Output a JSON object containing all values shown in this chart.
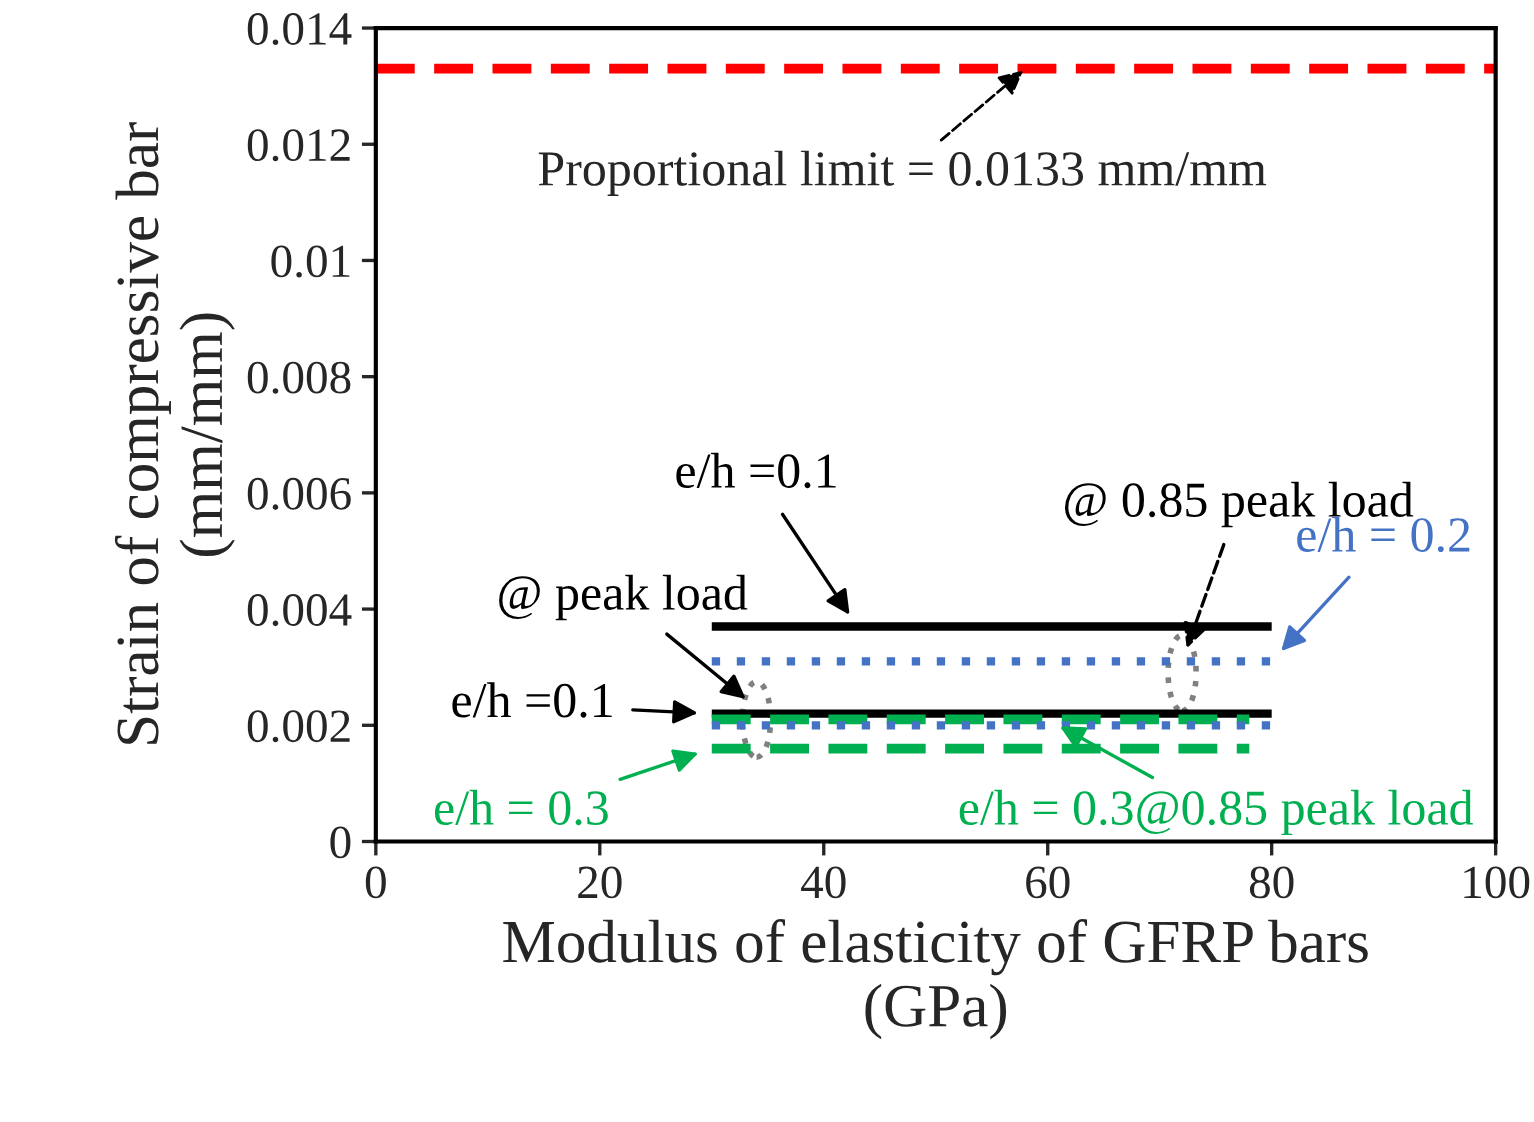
{
  "chart_data": {
    "type": "line",
    "xlabel": "Modulus of elasticity of GFRP bars\n(GPa)",
    "ylabel": "Strain of compressive bar\n(mm/mm)",
    "xlim": [
      0,
      100
    ],
    "xticks": [
      0,
      20,
      40,
      60,
      80,
      100
    ],
    "ylim": [
      0,
      0.014
    ],
    "yticks": [
      0,
      0.002,
      0.004,
      0.006,
      0.008,
      0.01,
      0.012,
      0.014
    ],
    "grid": false,
    "legend": false,
    "series": [
      {
        "color": "#000000",
        "line_style": "solid",
        "x": [
          30,
          80
        ],
        "values": [
          0.0037,
          0.0037
        ]
      },
      {
        "color": "#4472c4",
        "line_style": "dotted",
        "x": [
          30,
          80
        ],
        "values": [
          0.0031,
          0.0031
        ]
      },
      {
        "color": "#000000",
        "line_style": "solid",
        "x": [
          30,
          80
        ],
        "values": [
          0.0022,
          0.0022
        ]
      },
      {
        "color": "#00b050",
        "line_style": "dashed",
        "x": [
          30,
          78
        ],
        "values": [
          0.0021,
          0.0021
        ]
      },
      {
        "color": "#4472c4",
        "line_style": "dotted",
        "x": [
          30,
          80
        ],
        "values": [
          0.002,
          0.002
        ]
      },
      {
        "color": "#00b050",
        "line_style": "dashed",
        "x": [
          30,
          78
        ],
        "values": [
          0.0016,
          0.0016
        ]
      }
    ],
    "ref_lines": [
      {
        "axis": "y",
        "value": 0.0133,
        "label": "Proportional limit = 0.0133 mm/mm",
        "color": "#ff0000",
        "line_style": "dashed"
      }
    ],
    "annotations": [
      {
        "text": "e/h =0.1",
        "x": 43,
        "y": 0.0037
      },
      {
        "text": "@ 0.85 peak load",
        "x": 72,
        "y": 0.0031
      },
      {
        "text": "e/h = 0.2",
        "x": 80,
        "y": 0.0031
      },
      {
        "text": "@ peak load",
        "x": 34,
        "y": 0.0023
      },
      {
        "text": "e/h =0.1",
        "x": 30,
        "y": 0.0022
      },
      {
        "text": "e/h = 0.3",
        "x": 30,
        "y": 0.0016
      },
      {
        "text": "e/h = 0.3@0.85 peak load",
        "x": 60,
        "y": 0.0021
      }
    ]
  }
}
